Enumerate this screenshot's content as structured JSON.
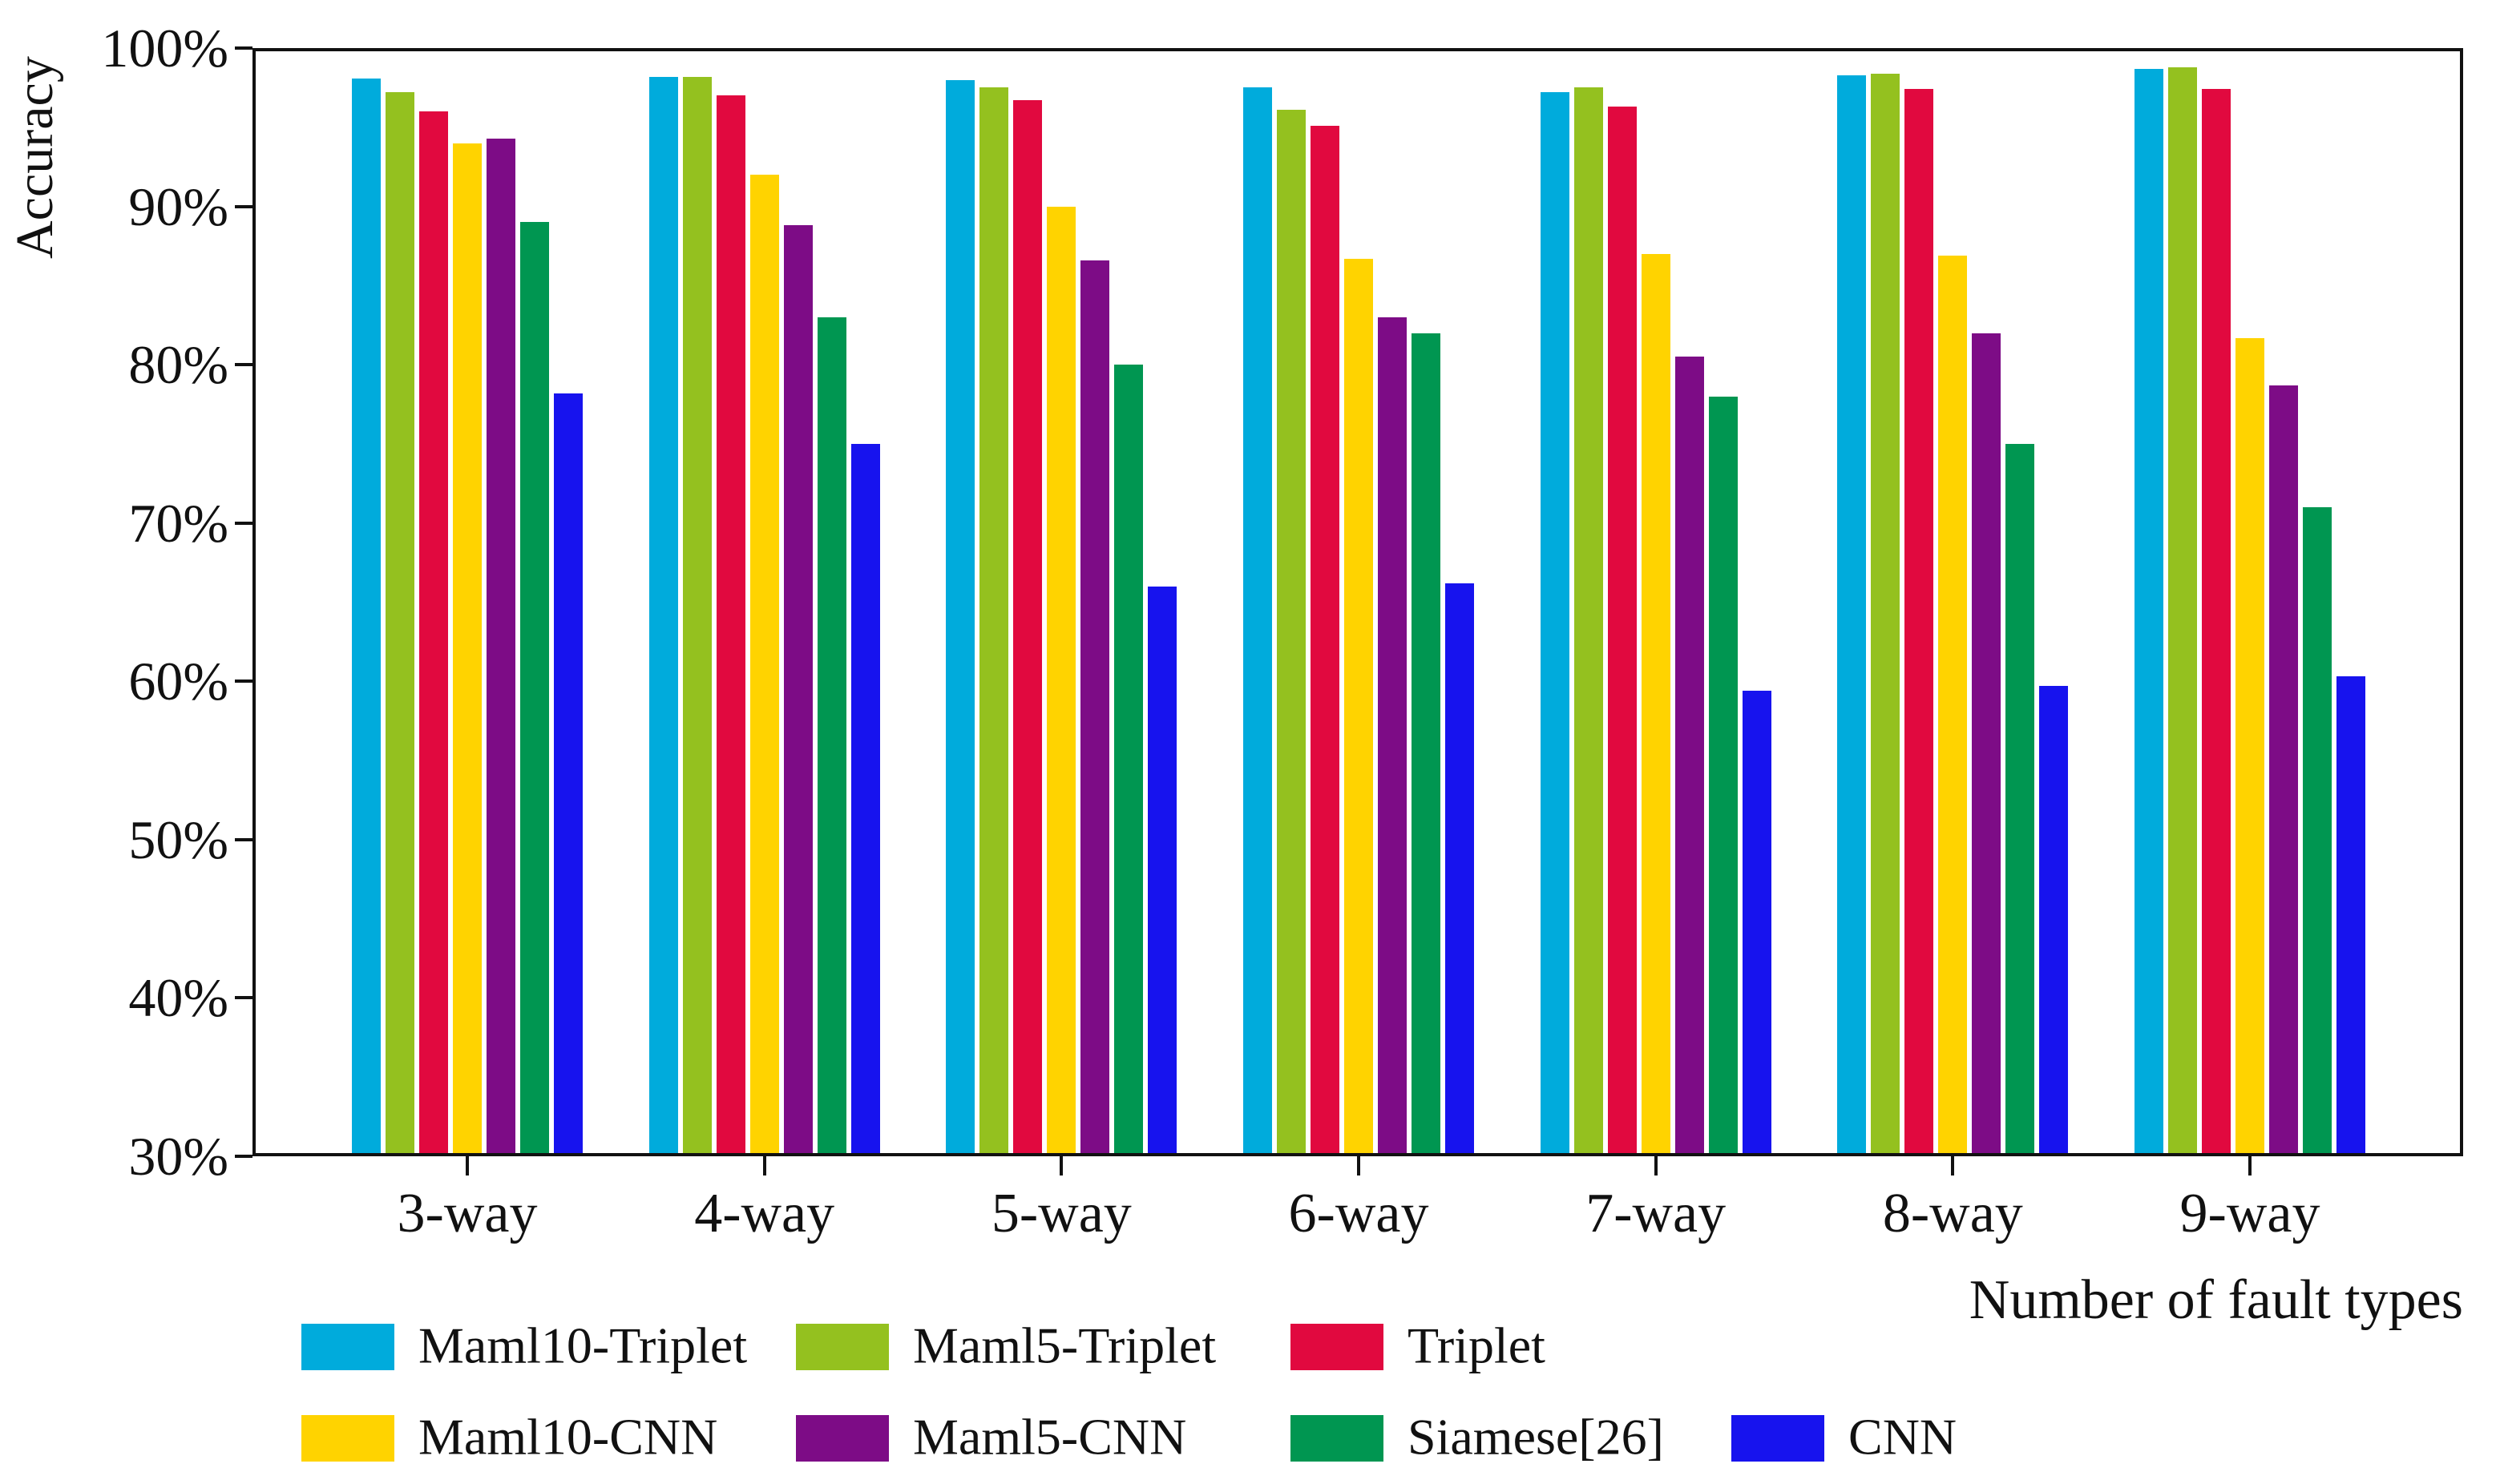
{
  "figure": {
    "ylabel": "Accuracy",
    "xlabel": "Number of fault types"
  },
  "chart_data": {
    "type": "bar",
    "title": "",
    "xlabel": "Number of fault types",
    "ylabel": "Accuracy",
    "ylim": [
      30,
      100
    ],
    "ytick_values": [
      30,
      40,
      50,
      60,
      70,
      80,
      90,
      100
    ],
    "ytick_labels": [
      "30%",
      "40%",
      "50%",
      "60%",
      "70%",
      "80%",
      "90%",
      "100%"
    ],
    "grid": false,
    "legend_position": "below-left, two rows",
    "categories": [
      "3-way",
      "4-way",
      "5-way",
      "6-way",
      "7-way",
      "8-way",
      "9-way"
    ],
    "series": [
      {
        "name": "Maml10-Triplet",
        "color": "#00ABDC",
        "values": [
          98.1,
          98.2,
          98.0,
          97.5,
          97.2,
          98.3,
          98.7
        ]
      },
      {
        "name": "Maml5-Triplet",
        "color": "#94C11F",
        "values": [
          97.2,
          98.2,
          97.5,
          96.1,
          97.5,
          98.4,
          98.8
        ]
      },
      {
        "name": "Triplet",
        "color": "#E1093F",
        "values": [
          96.0,
          97.0,
          96.7,
          95.1,
          96.3,
          97.4,
          97.4
        ]
      },
      {
        "name": "Maml10-CNN",
        "color": "#FFD300",
        "values": [
          94.0,
          92.0,
          90.0,
          86.7,
          87.0,
          86.9,
          81.7
        ]
      },
      {
        "name": "Maml5-CNN",
        "color": "#7D0C86",
        "values": [
          94.3,
          88.8,
          86.6,
          83.0,
          80.5,
          82.0,
          78.7
        ]
      },
      {
        "name": "Siamese[26]",
        "color": "#009651",
        "values": [
          89.0,
          83.0,
          80.0,
          82.0,
          78.0,
          75.0,
          71.0
        ]
      },
      {
        "name": "CNN",
        "color": "#1713EE",
        "values": [
          78.2,
          75.0,
          66.0,
          66.2,
          59.4,
          59.7,
          60.3
        ]
      }
    ],
    "legend_rows": [
      [
        0,
        1,
        2
      ],
      [
        3,
        4,
        5,
        6
      ]
    ]
  }
}
